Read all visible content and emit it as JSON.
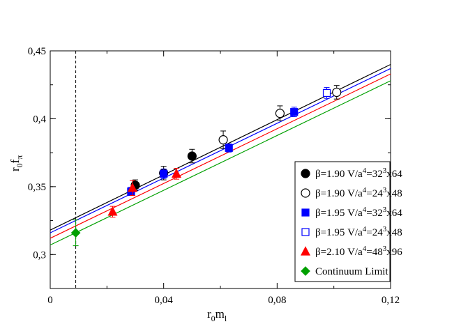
{
  "chart_data": {
    "type": "scatter",
    "title": "",
    "xlabel": {
      "main": "r",
      "sub1": "0",
      "main2": "m",
      "sub2": "l"
    },
    "ylabel": {
      "main": "r",
      "sub1": "0",
      "main2": "f",
      "sub2": "π"
    },
    "xlim": [
      0,
      0.12
    ],
    "ylim": [
      0.275,
      0.45
    ],
    "x_ticks": [
      0,
      0.04,
      0.08,
      0.12
    ],
    "x_tick_labels": [
      "0",
      "0,04",
      "0,08",
      "0,12"
    ],
    "y_ticks": [
      0.3,
      0.35,
      0.4,
      0.45
    ],
    "y_tick_labels": [
      "0,3",
      "0,35",
      "0,4",
      "0,45"
    ],
    "vertical_marker_x": 0.009,
    "fit_lines": [
      {
        "name": "fit-black",
        "color": "#000000",
        "x": [
          0,
          0.12
        ],
        "y": [
          0.318,
          0.44
        ]
      },
      {
        "name": "fit-blue",
        "color": "#0000ff",
        "x": [
          0,
          0.12
        ],
        "y": [
          0.316,
          0.437
        ]
      },
      {
        "name": "fit-red",
        "color": "#ff0000",
        "x": [
          0,
          0.12
        ],
        "y": [
          0.312,
          0.433
        ]
      },
      {
        "name": "fit-green",
        "color": "#00a000",
        "x": [
          0,
          0.12
        ],
        "y": [
          0.307,
          0.428
        ]
      }
    ],
    "series": [
      {
        "name": "β=1.90 V/a^4=32^3x64",
        "legend": {
          "pre": "β=1.90 V/a",
          "sup1": "4",
          "mid": "=32",
          "sup2": "3",
          "post": "x64"
        },
        "marker": "circle",
        "filled": true,
        "color": "#000000",
        "points": [
          {
            "x": 0.03,
            "y": 0.351,
            "err": 0.004
          },
          {
            "x": 0.04,
            "y": 0.36,
            "err": 0.005
          },
          {
            "x": 0.05,
            "y": 0.3725,
            "err": 0.005
          }
        ]
      },
      {
        "name": "β=1.90 V/a^4=24^3x48",
        "legend": {
          "pre": "β=1.90 V/a",
          "sup1": "4",
          "mid": "=24",
          "sup2": "3",
          "post": "x48"
        },
        "marker": "circle",
        "filled": false,
        "color": "#000000",
        "points": [
          {
            "x": 0.061,
            "y": 0.3845,
            "err": 0.0065
          },
          {
            "x": 0.081,
            "y": 0.404,
            "err": 0.0055
          },
          {
            "x": 0.101,
            "y": 0.4195,
            "err": 0.005
          }
        ]
      },
      {
        "name": "β=1.95 V/a^4=32^3x64",
        "legend": {
          "pre": "β=1.95 V/a",
          "sup1": "4",
          "mid": "=32",
          "sup2": "3",
          "post": "x64"
        },
        "marker": "square",
        "filled": true,
        "color": "#0000ff",
        "points": [
          {
            "x": 0.0285,
            "y": 0.3465,
            "err": 0.003
          },
          {
            "x": 0.04,
            "y": 0.3595,
            "err": 0.0035
          },
          {
            "x": 0.063,
            "y": 0.3785,
            "err": 0.003
          },
          {
            "x": 0.086,
            "y": 0.405,
            "err": 0.0035
          }
        ]
      },
      {
        "name": "β=1.95 V/a^4=24^3x48",
        "legend": {
          "pre": "β=1.95 V/a",
          "sup1": "4",
          "mid": "=24",
          "sup2": "3",
          "post": "x48"
        },
        "marker": "square",
        "filled": false,
        "color": "#0000ff",
        "points": [
          {
            "x": 0.0975,
            "y": 0.419,
            "err": 0.004
          }
        ]
      },
      {
        "name": "β=2.10 V/a^4=48^3x96",
        "legend": {
          "pre": "β=2.10 V/a",
          "sup1": "4",
          "mid": "=48",
          "sup2": "3",
          "post": "x96"
        },
        "marker": "triangle",
        "filled": true,
        "color": "#ff0000",
        "points": [
          {
            "x": 0.022,
            "y": 0.3315,
            "err": 0.004
          },
          {
            "x": 0.029,
            "y": 0.349,
            "err": 0.0055
          },
          {
            "x": 0.0445,
            "y": 0.3595,
            "err": 0.004
          }
        ]
      },
      {
        "name": "Continuum Limit",
        "legend": {
          "pre": "Continuum Limit",
          "sup1": "",
          "mid": "",
          "sup2": "",
          "post": ""
        },
        "marker": "diamond",
        "filled": true,
        "color": "#00a000",
        "points": [
          {
            "x": 0.009,
            "y": 0.316,
            "err": 0.0095
          }
        ]
      }
    ],
    "legend_position": "bottom-right"
  }
}
